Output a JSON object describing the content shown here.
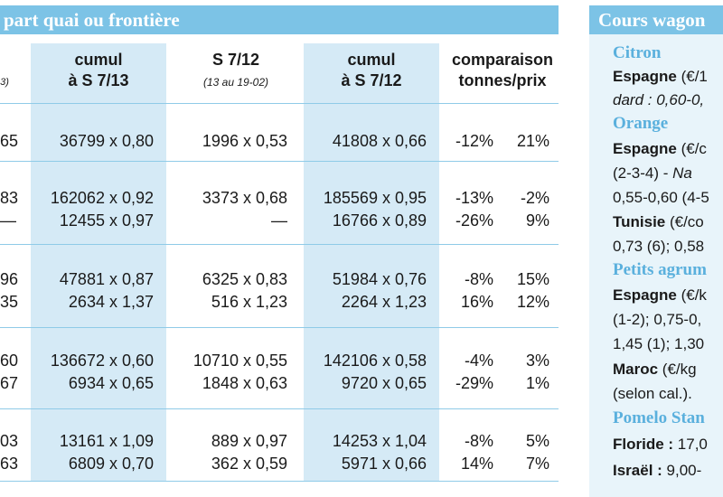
{
  "left_header": "part quai ou frontière",
  "right_header": "Cours wagon",
  "columns": {
    "partial_col": "3)",
    "c1": [
      "cumul",
      "à S 7/13"
    ],
    "c2": [
      "S 7/12",
      "(13 au 19-02)"
    ],
    "c3": [
      "cumul",
      "à S 7/12"
    ],
    "c4": [
      "comparaison",
      "tonnes/prix"
    ]
  },
  "rows": [
    {
      "p": "65",
      "c1": "36799 x 0,80",
      "c2": "1996 x 0,53",
      "c3": "41808 x 0,66",
      "t": "-12%",
      "pr": "21%"
    },
    {
      "p": "83",
      "c1": "162062 x 0,92",
      "c2": "3373 x 0,68",
      "c3": "185569 x 0,95",
      "t": "-13%",
      "pr": "-2%"
    },
    {
      "p": "—",
      "c1": "12455 x 0,97",
      "c2": "—",
      "c3": "16766 x 0,89",
      "t": "-26%",
      "pr": "9%"
    },
    {
      "p": "96",
      "c1": "47881 x 0,87",
      "c2": "6325 x 0,83",
      "c3": "51984 x 0,76",
      "t": "-8%",
      "pr": "15%"
    },
    {
      "p": "35",
      "c1": "2634 x 1,37",
      "c2": "516 x 1,23",
      "c3": "2264 x 1,23",
      "t": "16%",
      "pr": "12%"
    },
    {
      "p": "60",
      "c1": "136672 x 0,60",
      "c2": "10710 x 0,55",
      "c3": "142106 x 0,58",
      "t": "-4%",
      "pr": "3%"
    },
    {
      "p": "67",
      "c1": "6934 x 0,65",
      "c2": "1848 x 0,63",
      "c3": "9720 x 0,65",
      "t": "-29%",
      "pr": "1%"
    },
    {
      "p": "03",
      "c1": "13161 x 1,09",
      "c2": "889 x 0,97",
      "c3": "14253 x 1,04",
      "t": "-8%",
      "pr": "5%"
    },
    {
      "p": "63",
      "c1": "6809 x 0,70",
      "c2": "362 x 0,59",
      "c3": "5971 x 0,66",
      "t": "14%",
      "pr": "7%"
    }
  ],
  "right_panel": {
    "citron": "Citron",
    "citron_l1_bold": "Espagne",
    "citron_l1": " (€/1",
    "citron_l2": "dard : 0,60-0,",
    "orange": "Orange",
    "orange_l1_bold": "Espagne",
    "orange_l1": " (€/c",
    "orange_l2a": "(2-3-4) - ",
    "orange_l2b": "Na",
    "orange_l3": "0,55-0,60 (4-5",
    "orange_l4_bold": "Tunisie",
    "orange_l4": " (€/co",
    "orange_l5": "0,73 (6); 0,58",
    "petits": "Petits agrum",
    "petits_l1_bold": "Espagne",
    "petits_l1": " (€/k",
    "petits_l2": "(1-2); 0,75-0,",
    "petits_l3": "1,45 (1); 1,30",
    "petits_l4_bold": "Maroc",
    "petits_l4": " (€/kg",
    "petits_l5": "(selon cal.).",
    "pomelo": "Pomelo Stan",
    "pomelo_l1_bold": "Floride : ",
    "pomelo_l1": "17,0",
    "pomelo_l2_bold": "Israël : ",
    "pomelo_l2": "9,00-"
  }
}
